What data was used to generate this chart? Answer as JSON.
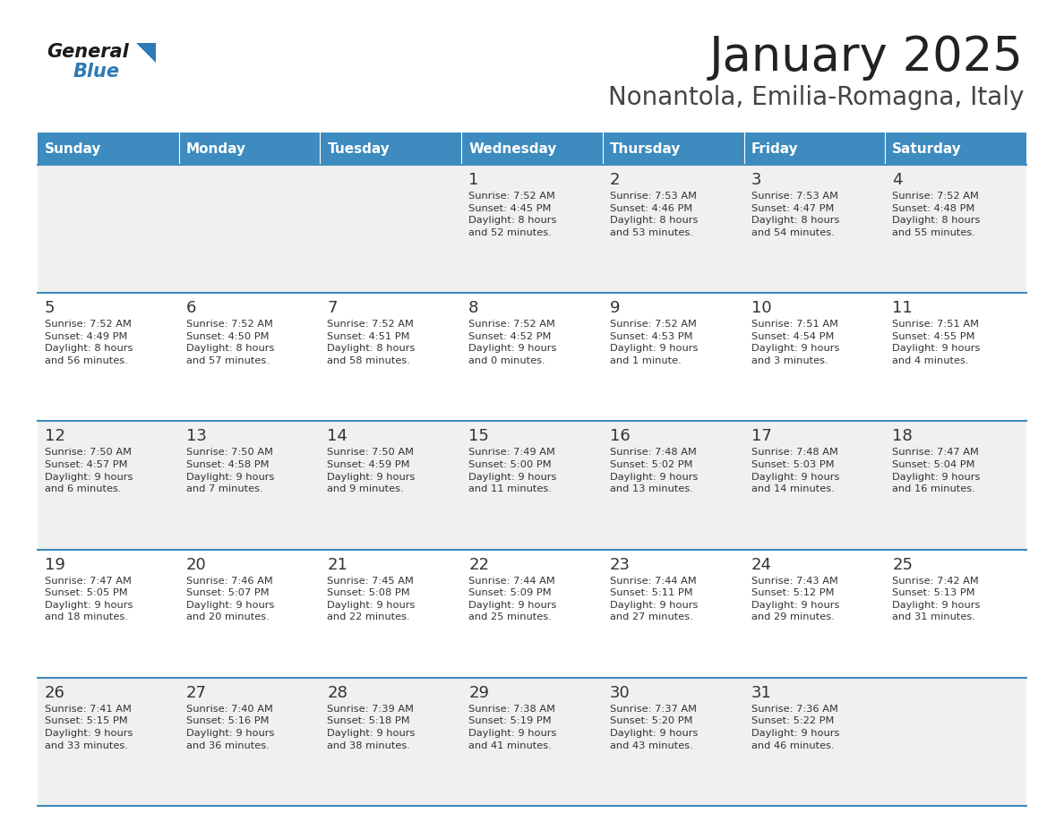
{
  "title": "January 2025",
  "subtitle": "Nonantola, Emilia-Romagna, Italy",
  "days_of_week": [
    "Sunday",
    "Monday",
    "Tuesday",
    "Wednesday",
    "Thursday",
    "Friday",
    "Saturday"
  ],
  "header_bg": "#3d8bbf",
  "header_text": "#ffffff",
  "row_bg_odd": "#f0f0f0",
  "row_bg_even": "#ffffff",
  "cell_text_color": "#333333",
  "day_num_color": "#333333",
  "border_color": "#3d8bbf",
  "title_color": "#222222",
  "subtitle_color": "#444444",
  "calendar": [
    [
      {
        "day": null,
        "info": null
      },
      {
        "day": null,
        "info": null
      },
      {
        "day": null,
        "info": null
      },
      {
        "day": 1,
        "info": "Sunrise: 7:52 AM\nSunset: 4:45 PM\nDaylight: 8 hours\nand 52 minutes."
      },
      {
        "day": 2,
        "info": "Sunrise: 7:53 AM\nSunset: 4:46 PM\nDaylight: 8 hours\nand 53 minutes."
      },
      {
        "day": 3,
        "info": "Sunrise: 7:53 AM\nSunset: 4:47 PM\nDaylight: 8 hours\nand 54 minutes."
      },
      {
        "day": 4,
        "info": "Sunrise: 7:52 AM\nSunset: 4:48 PM\nDaylight: 8 hours\nand 55 minutes."
      }
    ],
    [
      {
        "day": 5,
        "info": "Sunrise: 7:52 AM\nSunset: 4:49 PM\nDaylight: 8 hours\nand 56 minutes."
      },
      {
        "day": 6,
        "info": "Sunrise: 7:52 AM\nSunset: 4:50 PM\nDaylight: 8 hours\nand 57 minutes."
      },
      {
        "day": 7,
        "info": "Sunrise: 7:52 AM\nSunset: 4:51 PM\nDaylight: 8 hours\nand 58 minutes."
      },
      {
        "day": 8,
        "info": "Sunrise: 7:52 AM\nSunset: 4:52 PM\nDaylight: 9 hours\nand 0 minutes."
      },
      {
        "day": 9,
        "info": "Sunrise: 7:52 AM\nSunset: 4:53 PM\nDaylight: 9 hours\nand 1 minute."
      },
      {
        "day": 10,
        "info": "Sunrise: 7:51 AM\nSunset: 4:54 PM\nDaylight: 9 hours\nand 3 minutes."
      },
      {
        "day": 11,
        "info": "Sunrise: 7:51 AM\nSunset: 4:55 PM\nDaylight: 9 hours\nand 4 minutes."
      }
    ],
    [
      {
        "day": 12,
        "info": "Sunrise: 7:50 AM\nSunset: 4:57 PM\nDaylight: 9 hours\nand 6 minutes."
      },
      {
        "day": 13,
        "info": "Sunrise: 7:50 AM\nSunset: 4:58 PM\nDaylight: 9 hours\nand 7 minutes."
      },
      {
        "day": 14,
        "info": "Sunrise: 7:50 AM\nSunset: 4:59 PM\nDaylight: 9 hours\nand 9 minutes."
      },
      {
        "day": 15,
        "info": "Sunrise: 7:49 AM\nSunset: 5:00 PM\nDaylight: 9 hours\nand 11 minutes."
      },
      {
        "day": 16,
        "info": "Sunrise: 7:48 AM\nSunset: 5:02 PM\nDaylight: 9 hours\nand 13 minutes."
      },
      {
        "day": 17,
        "info": "Sunrise: 7:48 AM\nSunset: 5:03 PM\nDaylight: 9 hours\nand 14 minutes."
      },
      {
        "day": 18,
        "info": "Sunrise: 7:47 AM\nSunset: 5:04 PM\nDaylight: 9 hours\nand 16 minutes."
      }
    ],
    [
      {
        "day": 19,
        "info": "Sunrise: 7:47 AM\nSunset: 5:05 PM\nDaylight: 9 hours\nand 18 minutes."
      },
      {
        "day": 20,
        "info": "Sunrise: 7:46 AM\nSunset: 5:07 PM\nDaylight: 9 hours\nand 20 minutes."
      },
      {
        "day": 21,
        "info": "Sunrise: 7:45 AM\nSunset: 5:08 PM\nDaylight: 9 hours\nand 22 minutes."
      },
      {
        "day": 22,
        "info": "Sunrise: 7:44 AM\nSunset: 5:09 PM\nDaylight: 9 hours\nand 25 minutes."
      },
      {
        "day": 23,
        "info": "Sunrise: 7:44 AM\nSunset: 5:11 PM\nDaylight: 9 hours\nand 27 minutes."
      },
      {
        "day": 24,
        "info": "Sunrise: 7:43 AM\nSunset: 5:12 PM\nDaylight: 9 hours\nand 29 minutes."
      },
      {
        "day": 25,
        "info": "Sunrise: 7:42 AM\nSunset: 5:13 PM\nDaylight: 9 hours\nand 31 minutes."
      }
    ],
    [
      {
        "day": 26,
        "info": "Sunrise: 7:41 AM\nSunset: 5:15 PM\nDaylight: 9 hours\nand 33 minutes."
      },
      {
        "day": 27,
        "info": "Sunrise: 7:40 AM\nSunset: 5:16 PM\nDaylight: 9 hours\nand 36 minutes."
      },
      {
        "day": 28,
        "info": "Sunrise: 7:39 AM\nSunset: 5:18 PM\nDaylight: 9 hours\nand 38 minutes."
      },
      {
        "day": 29,
        "info": "Sunrise: 7:38 AM\nSunset: 5:19 PM\nDaylight: 9 hours\nand 41 minutes."
      },
      {
        "day": 30,
        "info": "Sunrise: 7:37 AM\nSunset: 5:20 PM\nDaylight: 9 hours\nand 43 minutes."
      },
      {
        "day": 31,
        "info": "Sunrise: 7:36 AM\nSunset: 5:22 PM\nDaylight: 9 hours\nand 46 minutes."
      },
      {
        "day": null,
        "info": null
      }
    ]
  ],
  "logo_general_color": "#1a1a1a",
  "logo_blue_color": "#2e7ab5"
}
